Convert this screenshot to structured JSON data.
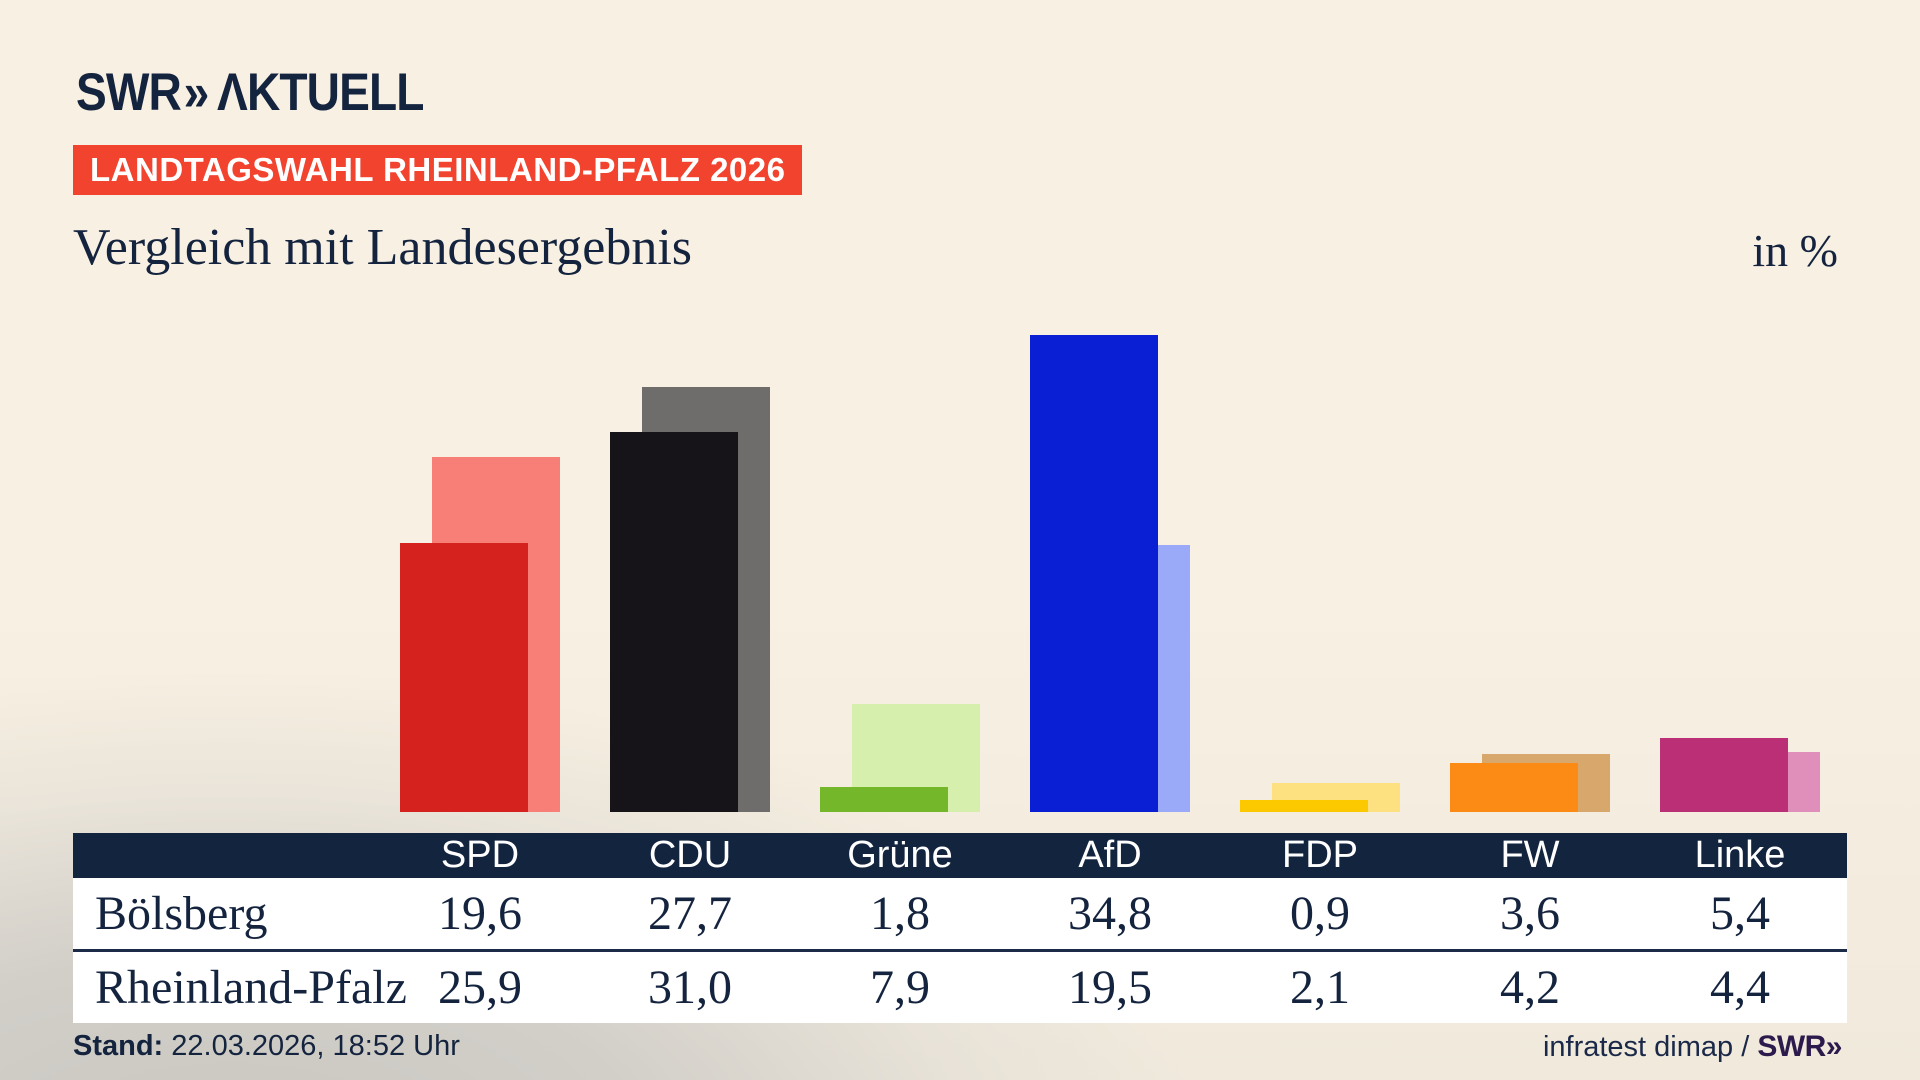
{
  "colors": {
    "background_beige": "#f8f0e3",
    "background_gray": "#d2cfc9",
    "navy_text": "#14233e",
    "badge_red": "#f2432f",
    "table_header_bg": "#13243f",
    "row_bg": "#ffffff",
    "footer_logo_purple": "#2c1a4d"
  },
  "logo": {
    "swr": "SWR",
    "chevrons": "»",
    "aktuell": "ΛKTUELL"
  },
  "badge": {
    "label": "LANDTAGSWAHL RHEINLAND-PFALZ 2026"
  },
  "title": {
    "text": "Vergleich mit Landesergebnis",
    "unit": "in %"
  },
  "chart_data": {
    "type": "bar",
    "categories": [
      "SPD",
      "CDU",
      "Grüne",
      "AfD",
      "FDP",
      "FW",
      "Linke"
    ],
    "series": [
      {
        "name": "Bölsberg",
        "values": [
          19.6,
          27.7,
          1.8,
          34.8,
          0.9,
          3.6,
          5.4
        ],
        "colors": [
          "#d5221f",
          "#161419",
          "#74b72a",
          "#0a1fd4",
          "#fcc800",
          "#fb8b15",
          "#bb2f76"
        ]
      },
      {
        "name": "Rheinland-Pfalz",
        "values": [
          25.9,
          31.0,
          7.9,
          19.5,
          2.1,
          4.2,
          4.4
        ],
        "colors": [
          "#f87e78",
          "#6f6d6c",
          "#d6efad",
          "#9ba9f9",
          "#fde181",
          "#d8a76c",
          "#e08fbb"
        ]
      }
    ],
    "title": "Vergleich mit Landesergebnis",
    "xlabel": "",
    "ylabel": "in %",
    "ylim": [
      0,
      36
    ],
    "grid": false,
    "legend": "table-below"
  },
  "table": {
    "columns": [
      "SPD",
      "CDU",
      "Grüne",
      "AfD",
      "FDP",
      "FW",
      "Linke"
    ],
    "rows": [
      {
        "label": "Bölsberg",
        "values": [
          "19,6",
          "27,7",
          "1,8",
          "34,8",
          "0,9",
          "3,6",
          "5,4"
        ]
      },
      {
        "label": "Rheinland-Pfalz",
        "values": [
          "25,9",
          "31,0",
          "7,9",
          "19,5",
          "2,1",
          "4,2",
          "4,4"
        ]
      }
    ]
  },
  "footer": {
    "stand_label": "Stand:",
    "stand_value": " 22.03.2026, 18:52 Uhr",
    "source_text": "infratest dimap / ",
    "source_logo": "SWR»"
  }
}
